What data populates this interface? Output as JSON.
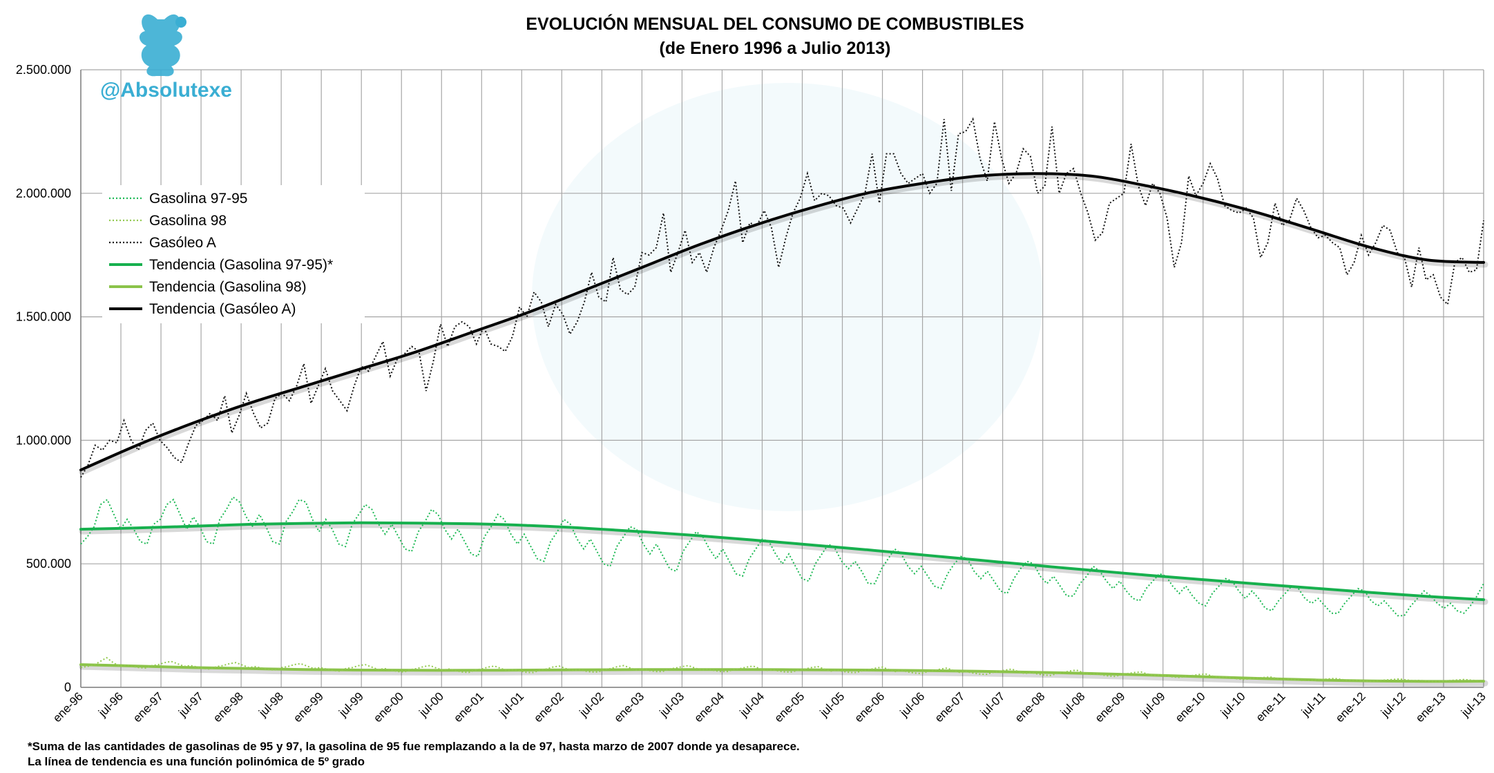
{
  "brand": {
    "handle": "@Absolutexe"
  },
  "colors": {
    "gasolina_97_95": "#1db954",
    "gasolina_98": "#92c94f",
    "gasoleo_a": "#111111",
    "tendencia_97_95": "#17b04e",
    "tendencia_98": "#8bc34a",
    "tendencia_gasoleo": "#000000",
    "grid": "#a6a6a6",
    "brand": "#3aaed3"
  },
  "footnotes": [
    "*Suma de las cantidades de gasolinas de 95 y 97, la gasolina de 95 fue remplazando a la de 97, hasta marzo de 2007 donde ya desaparece.",
    "La línea de tendencia es una función polinómica de 5º grado"
  ],
  "chart_data": {
    "type": "line",
    "title": "EVOLUCIÓN MENSUAL DEL CONSUMO DE COMBUSTIBLES",
    "subtitle": "(de Enero 1996 a Julio 2013)",
    "xlabel": "",
    "ylabel": "",
    "ylim": [
      0,
      2500000
    ],
    "y_ticks": [
      0,
      500000,
      1000000,
      1500000,
      2000000,
      2500000
    ],
    "y_tick_labels": [
      "0",
      "500.000",
      "1.000.000",
      "1.500.000",
      "2.000.000",
      "2.500.000"
    ],
    "x_tick_labels": [
      "ene-96",
      "jul-96",
      "ene-97",
      "jul-97",
      "ene-98",
      "jul-98",
      "ene-99",
      "jul-99",
      "ene-00",
      "jul-00",
      "ene-01",
      "jul-01",
      "ene-02",
      "jul-02",
      "ene-03",
      "jul-03",
      "ene-04",
      "jul-04",
      "ene-05",
      "jul-05",
      "ene-06",
      "jul-06",
      "ene-07",
      "jul-07",
      "ene-08",
      "jul-08",
      "ene-09",
      "jul-09",
      "ene-10",
      "jul-10",
      "ene-11",
      "jul-11",
      "ene-12",
      "jul-12",
      "ene-13",
      "jul-13"
    ],
    "grid": true,
    "legend_placement": "top-left",
    "series": [
      {
        "name": "Gasolina 97-95",
        "style": "dotted",
        "values": [
          580000,
          610000,
          650000,
          740000,
          760000,
          700000,
          640000,
          680000,
          640000,
          590000,
          580000,
          660000,
          680000,
          740000,
          760000,
          700000,
          640000,
          690000,
          650000,
          590000,
          580000,
          680000,
          720000,
          770000,
          750000,
          690000,
          650000,
          700000,
          650000,
          590000,
          580000,
          670000,
          710000,
          760000,
          750000,
          680000,
          630000,
          680000,
          640000,
          580000,
          570000,
          660000,
          700000,
          740000,
          720000,
          660000,
          620000,
          660000,
          610000,
          560000,
          550000,
          630000,
          670000,
          720000,
          700000,
          640000,
          600000,
          640000,
          590000,
          540000,
          530000,
          610000,
          650000,
          700000,
          680000,
          620000,
          580000,
          620000,
          570000,
          520000,
          510000,
          590000,
          630000,
          680000,
          660000,
          600000,
          560000,
          600000,
          550000,
          500000,
          490000,
          570000,
          610000,
          650000,
          640000,
          580000,
          540000,
          580000,
          530000,
          480000,
          470000,
          550000,
          590000,
          630000,
          610000,
          560000,
          520000,
          560000,
          510000,
          460000,
          450000,
          520000,
          560000,
          600000,
          590000,
          540000,
          500000,
          540000,
          490000,
          440000,
          430000,
          500000,
          540000,
          580000,
          560000,
          510000,
          480000,
          510000,
          470000,
          420000,
          420000,
          480000,
          520000,
          560000,
          540000,
          490000,
          460000,
          490000,
          450000,
          410000,
          400000,
          460000,
          500000,
          530000,
          520000,
          470000,
          440000,
          470000,
          430000,
          390000,
          380000,
          440000,
          480000,
          510000,
          500000,
          450000,
          420000,
          450000,
          410000,
          370000,
          370000,
          420000,
          450000,
          490000,
          470000,
          430000,
          400000,
          430000,
          390000,
          360000,
          350000,
          400000,
          430000,
          460000,
          450000,
          410000,
          380000,
          410000,
          370000,
          340000,
          330000,
          380000,
          410000,
          440000,
          430000,
          390000,
          360000,
          390000,
          360000,
          320000,
          310000,
          350000,
          380000,
          410000,
          400000,
          360000,
          340000,
          360000,
          330000,
          300000,
          300000,
          340000,
          370000,
          400000,
          390000,
          350000,
          330000,
          350000,
          320000,
          290000,
          290000,
          330000,
          360000,
          390000,
          370000,
          340000,
          320000,
          340000,
          310000,
          300000,
          330000,
          370000,
          420000
        ]
      },
      {
        "name": "Gasolina 98",
        "style": "dotted",
        "values": [
          80000,
          85000,
          90000,
          105000,
          120000,
          100000,
          85000,
          90000,
          85000,
          80000,
          78000,
          88000,
          92000,
          100000,
          105000,
          95000,
          85000,
          88000,
          82000,
          76000,
          74000,
          84000,
          88000,
          96000,
          100000,
          90000,
          80000,
          84000,
          78000,
          72000,
          70000,
          80000,
          84000,
          92000,
          96000,
          86000,
          76000,
          80000,
          74000,
          68000,
          66000,
          76000,
          80000,
          88000,
          92000,
          82000,
          72000,
          76000,
          70000,
          64000,
          62000,
          72000,
          76000,
          84000,
          88000,
          78000,
          70000,
          74000,
          68000,
          62000,
          60000,
          70000,
          74000,
          82000,
          86000,
          76000,
          68000,
          72000,
          66000,
          60000,
          60000,
          70000,
          74000,
          82000,
          86000,
          76000,
          68000,
          72000,
          66000,
          62000,
          62000,
          72000,
          76000,
          84000,
          88000,
          78000,
          70000,
          74000,
          68000,
          64000,
          64000,
          74000,
          78000,
          84000,
          88000,
          78000,
          70000,
          74000,
          68000,
          64000,
          64000,
          72000,
          76000,
          82000,
          86000,
          76000,
          68000,
          72000,
          66000,
          62000,
          62000,
          70000,
          74000,
          80000,
          84000,
          74000,
          66000,
          70000,
          64000,
          60000,
          60000,
          68000,
          72000,
          78000,
          82000,
          72000,
          64000,
          68000,
          62000,
          58000,
          56000,
          64000,
          68000,
          74000,
          78000,
          68000,
          60000,
          64000,
          58000,
          54000,
          52000,
          60000,
          64000,
          70000,
          74000,
          64000,
          56000,
          60000,
          54000,
          50000,
          48000,
          56000,
          60000,
          66000,
          70000,
          60000,
          52000,
          56000,
          50000,
          46000,
          44000,
          52000,
          56000,
          60000,
          62000,
          54000,
          48000,
          50000,
          46000,
          42000,
          40000,
          46000,
          48000,
          52000,
          54000,
          46000,
          40000,
          42000,
          38000,
          34000,
          32000,
          36000,
          38000,
          40000,
          42000,
          36000,
          32000,
          34000,
          30000,
          28000,
          28000,
          30000,
          32000,
          34000,
          36000,
          32000,
          28000,
          30000,
          27000,
          25000,
          25000,
          28000,
          30000,
          32000,
          34000,
          30000,
          27000,
          28000,
          26000,
          24000,
          24000,
          26000,
          28000,
          30000,
          32000,
          29000,
          27000,
          28000
        ]
      },
      {
        "name": "Gasóleo A",
        "style": "dotted",
        "values": [
          850000,
          900000,
          980000,
          960000,
          1000000,
          990000,
          1080000,
          1000000,
          960000,
          1040000,
          1070000,
          1000000,
          970000,
          930000,
          910000,
          990000,
          1060000,
          1080000,
          1110000,
          1080000,
          1180000,
          1030000,
          1100000,
          1190000,
          1110000,
          1050000,
          1070000,
          1170000,
          1190000,
          1160000,
          1220000,
          1310000,
          1150000,
          1220000,
          1290000,
          1200000,
          1160000,
          1120000,
          1220000,
          1300000,
          1280000,
          1340000,
          1400000,
          1260000,
          1330000,
          1350000,
          1380000,
          1360000,
          1200000,
          1320000,
          1470000,
          1380000,
          1460000,
          1480000,
          1460000,
          1390000,
          1460000,
          1390000,
          1380000,
          1360000,
          1420000,
          1540000,
          1500000,
          1600000,
          1560000,
          1460000,
          1550000,
          1510000,
          1430000,
          1480000,
          1560000,
          1680000,
          1580000,
          1560000,
          1740000,
          1610000,
          1590000,
          1620000,
          1760000,
          1750000,
          1780000,
          1920000,
          1680000,
          1760000,
          1850000,
          1720000,
          1760000,
          1680000,
          1780000,
          1850000,
          1930000,
          2050000,
          1800000,
          1880000,
          1870000,
          1930000,
          1860000,
          1700000,
          1820000,
          1920000,
          1980000,
          2080000,
          1970000,
          2000000,
          1990000,
          1950000,
          1940000,
          1880000,
          1940000,
          2000000,
          2160000,
          1960000,
          2160000,
          2160000,
          2080000,
          2040000,
          2060000,
          2080000,
          2000000,
          2040000,
          2300000,
          2010000,
          2240000,
          2250000,
          2300000,
          2140000,
          2050000,
          2290000,
          2140000,
          2040000,
          2080000,
          2180000,
          2150000,
          2000000,
          2030000,
          2270000,
          2000000,
          2080000,
          2100000,
          2000000,
          1920000,
          1810000,
          1840000,
          1960000,
          1980000,
          2000000,
          2200000,
          2030000,
          1950000,
          2040000,
          2000000,
          1900000,
          1700000,
          1800000,
          2070000,
          1990000,
          2040000,
          2120000,
          2060000,
          1950000,
          1930000,
          1920000,
          1940000,
          1900000,
          1740000,
          1800000,
          1960000,
          1870000,
          1890000,
          1980000,
          1930000,
          1860000,
          1820000,
          1830000,
          1800000,
          1780000,
          1670000,
          1720000,
          1830000,
          1750000,
          1800000,
          1870000,
          1850000,
          1760000,
          1740000,
          1620000,
          1780000,
          1650000,
          1670000,
          1580000,
          1550000,
          1720000,
          1740000,
          1680000,
          1690000,
          1890000
        ]
      },
      {
        "name": "Tendencia (Gasolina 97-95)*",
        "style": "solid",
        "values": [
          640000,
          645000,
          652000,
          660000,
          664000,
          666000,
          665000,
          662000,
          655000,
          644000,
          630000,
          614000,
          596000,
          577000,
          557000,
          536000,
          515000,
          494000,
          474000,
          454000,
          436000,
          418000,
          401000,
          384000,
          368000,
          355000
        ]
      },
      {
        "name": "Tendencia (Gasolina 98)",
        "style": "solid",
        "values": [
          92000,
          86000,
          80000,
          76000,
          72000,
          70000,
          69000,
          69000,
          70000,
          71000,
          72000,
          72000,
          72000,
          71000,
          70000,
          68000,
          65000,
          61000,
          56000,
          50000,
          43000,
          36000,
          30000,
          26000,
          24000,
          25000
        ]
      },
      {
        "name": "Tendencia (Gasóleo A)",
        "style": "solid",
        "values": [
          880000,
          980000,
          1070000,
          1150000,
          1220000,
          1290000,
          1360000,
          1440000,
          1520000,
          1610000,
          1700000,
          1790000,
          1870000,
          1940000,
          2000000,
          2040000,
          2070000,
          2080000,
          2070000,
          2030000,
          1980000,
          1920000,
          1850000,
          1780000,
          1730000,
          1720000
        ]
      }
    ]
  }
}
